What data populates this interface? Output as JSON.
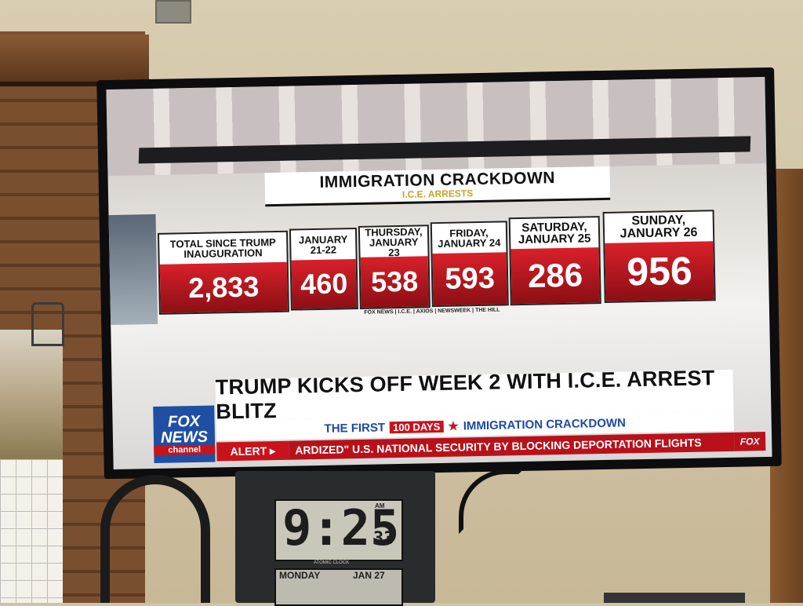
{
  "graphic": {
    "title": "IMMIGRATION CRACKDOWN",
    "subtitle": "I.C.E. ARRESTS",
    "sources": "FOX NEWS | I.C.E. | AXIOS | NEWSWEEK | THE HILL",
    "stats": [
      {
        "label": "TOTAL SINCE TRUMP INAUGURATION",
        "value": "2,833"
      },
      {
        "label": "JANUARY 21-22",
        "value": "460"
      },
      {
        "label": "THURSDAY, JANUARY 23",
        "value": "538"
      },
      {
        "label": "FRIDAY, JANUARY 24",
        "value": "593"
      },
      {
        "label": "SATURDAY, JANUARY 25",
        "value": "286"
      },
      {
        "label": "SUNDAY, JANUARY 26",
        "value": "956"
      }
    ]
  },
  "lower_third": {
    "headline": "TRUMP KICKS OFF WEEK 2 WITH I.C.E. ARREST BLITZ",
    "strap_left": "THE FIRST",
    "strap_badge": "100 DAYS",
    "strap_right": "IMMIGRATION CRACKDOWN",
    "alert_label": "ALERT ▸",
    "ticker": "ARDIZED\" U.S. NATIONAL SECURITY BY BLOCKING DEPORTATION FLIGHTS",
    "ticker_logo": "FOX"
  },
  "logo": {
    "line1": "FOX",
    "line2": "NEWS",
    "line3": "channel"
  },
  "clock": {
    "time": "9:25",
    "seconds": "33",
    "ampm": "AM",
    "brand": "ATOMIC CLOCK",
    "day": "MONDAY",
    "date": "JAN 27"
  }
}
